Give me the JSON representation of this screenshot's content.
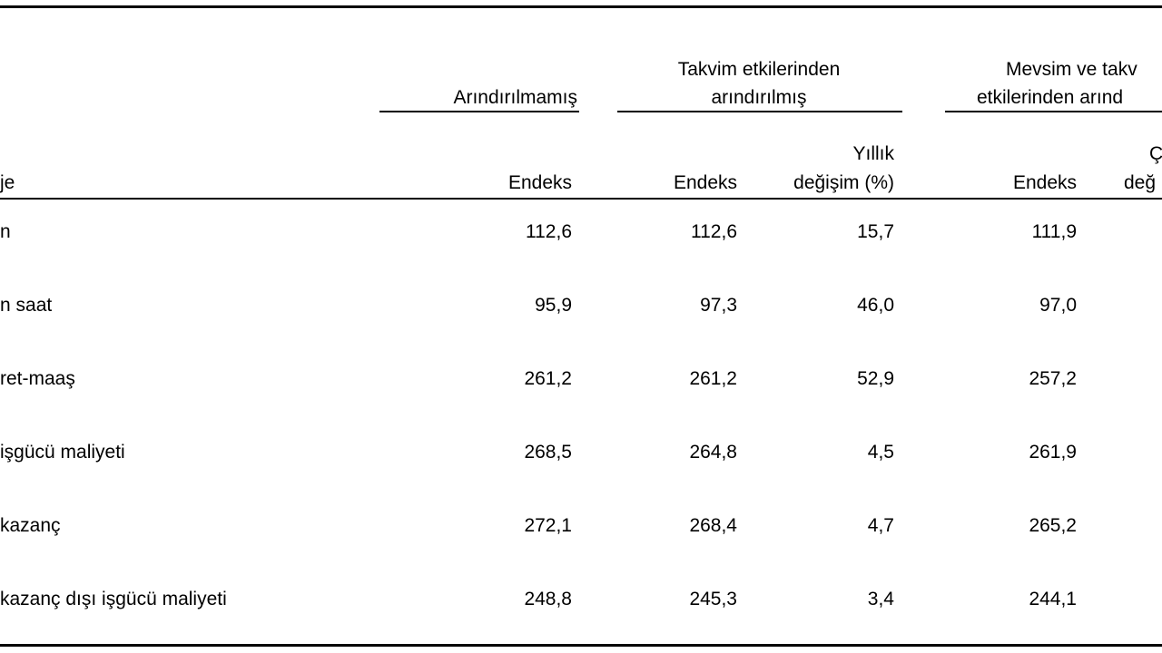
{
  "groups": {
    "unadjusted": "Arındırılmamış",
    "calendar_line1": "Takvim etkilerinden",
    "calendar_line2": "arındırılmış",
    "seasonal_line1": "Mevsim ve takv",
    "seasonal_line2": "etkilerinden arınd"
  },
  "columns": {
    "row_label": "je",
    "unadjusted_index": "Endeks",
    "calendar_index": "Endeks",
    "calendar_change_line1": "Yıllık",
    "calendar_change_line2": "değişim (%)",
    "seasonal_index": "Endeks",
    "seasonal_change_line1": "Ç",
    "seasonal_change_line2": "değ"
  },
  "rows": [
    {
      "label": "n",
      "unadjusted_index": "112,6",
      "calendar_index": "112,6",
      "calendar_change": "15,7",
      "seasonal_index": "111,9"
    },
    {
      "label": "n saat",
      "unadjusted_index": "95,9",
      "calendar_index": "97,3",
      "calendar_change": "46,0",
      "seasonal_index": "97,0"
    },
    {
      "label": "ret-maaş",
      "unadjusted_index": "261,2",
      "calendar_index": "261,2",
      "calendar_change": "52,9",
      "seasonal_index": "257,2"
    },
    {
      "label": "işgücü maliyeti",
      "unadjusted_index": "268,5",
      "calendar_index": "264,8",
      "calendar_change": "4,5",
      "seasonal_index": "261,9"
    },
    {
      "label": "kazanç",
      "unadjusted_index": "272,1",
      "calendar_index": "268,4",
      "calendar_change": "4,7",
      "seasonal_index": "265,2"
    },
    {
      "label": "kazanç dışı işgücü maliyeti",
      "unadjusted_index": "248,8",
      "calendar_index": "245,3",
      "calendar_change": "3,4",
      "seasonal_index": "244,1"
    }
  ]
}
